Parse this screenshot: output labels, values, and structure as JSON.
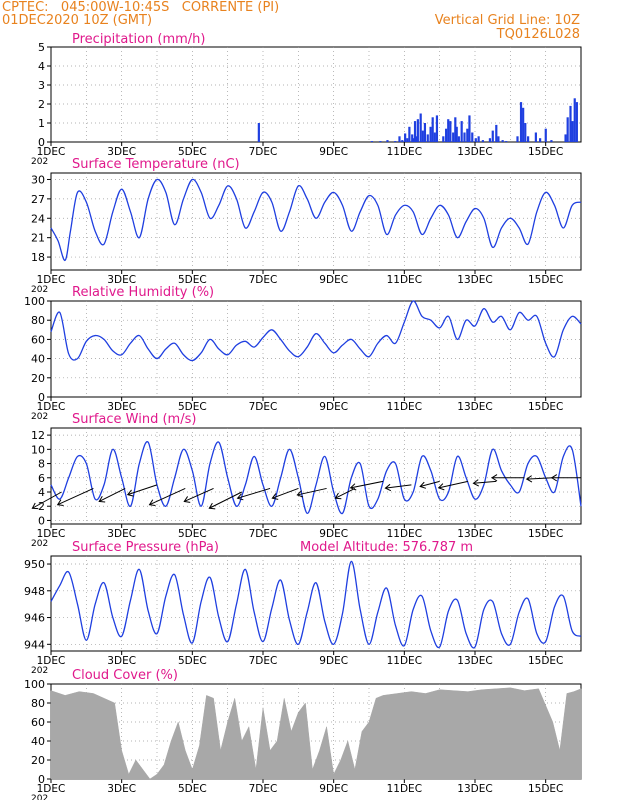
{
  "header": {
    "line1": "CPTEC:   045:00W-10:45S   CORRENTE (PI)",
    "line2": "01DEC2020 10Z (GMT)",
    "grid_note": "Vertical Grid Line: 10Z",
    "code": "TQ0126L028"
  },
  "colors": {
    "header": "#e8821e",
    "title": "#e0198c",
    "line": "#1f3fe0",
    "bar": "#1f3fe0",
    "cloud": "#a8a8a8",
    "wind_arrow": "#000000",
    "grid": "#9a9a9a"
  },
  "x_axis": {
    "tick_labels": [
      "1DEC",
      "3DEC",
      "5DEC",
      "7DEC",
      "9DEC",
      "11DEC",
      "13DEC",
      "15DEC"
    ],
    "tick_days": [
      0,
      2,
      4,
      6,
      8,
      10,
      12,
      14
    ],
    "range_days": [
      0,
      15
    ],
    "year_stub": "202"
  },
  "chart_data": [
    {
      "id": "precip",
      "type": "bar",
      "title": "Precipitation (mm/h)",
      "ylim": [
        0,
        5
      ],
      "yticks": [
        0,
        1,
        2,
        3,
        4,
        5
      ],
      "x_days": [
        5.88,
        9.08,
        9.32,
        9.52,
        9.74,
        9.86,
        9.94,
        10.02,
        10.08,
        10.14,
        10.22,
        10.26,
        10.3,
        10.34,
        10.38,
        10.46,
        10.52,
        10.58,
        10.66,
        10.74,
        10.8,
        10.86,
        10.92,
        11.1,
        11.18,
        11.24,
        11.3,
        11.38,
        11.44,
        11.48,
        11.54,
        11.62,
        11.7,
        11.78,
        11.84,
        11.92,
        12.02,
        12.1,
        12.22,
        12.42,
        12.5,
        12.6,
        12.66,
        12.78,
        12.88,
        13.2,
        13.3,
        13.36,
        13.42,
        13.5,
        13.72,
        13.84,
        14.0,
        14.16,
        14.56,
        14.62,
        14.7,
        14.76,
        14.82,
        14.88
      ],
      "values": [
        1.0,
        0.05,
        0.05,
        0.1,
        0.05,
        0.3,
        0.1,
        0.45,
        0.2,
        0.8,
        0.4,
        0.2,
        1.1,
        0.3,
        1.2,
        1.5,
        0.6,
        1.0,
        0.4,
        0.8,
        1.3,
        0.5,
        1.4,
        0.3,
        0.7,
        1.2,
        1.1,
        0.5,
        1.3,
        0.8,
        0.3,
        1.1,
        0.5,
        0.7,
        1.4,
        0.5,
        0.2,
        0.3,
        0.1,
        0.2,
        0.6,
        0.9,
        0.3,
        0.1,
        0.05,
        0.3,
        2.1,
        1.8,
        1.0,
        0.3,
        0.5,
        0.2,
        0.7,
        0.1,
        0.4,
        1.3,
        1.9,
        1.1,
        2.3,
        2.1
      ]
    },
    {
      "id": "temp",
      "type": "line",
      "title": "Surface Temperature (nC)",
      "ylim": [
        16,
        31
      ],
      "yticks": [
        18,
        21,
        24,
        27,
        30
      ],
      "x_days": [
        0,
        0.2,
        0.4,
        0.55,
        0.75,
        1.0,
        1.25,
        1.5,
        1.75,
        2.0,
        2.25,
        2.5,
        2.75,
        3.0,
        3.25,
        3.5,
        3.75,
        4.0,
        4.25,
        4.5,
        4.75,
        5.0,
        5.25,
        5.5,
        5.75,
        6.0,
        6.25,
        6.5,
        6.75,
        7.0,
        7.25,
        7.5,
        7.75,
        8.0,
        8.25,
        8.5,
        8.75,
        9.0,
        9.25,
        9.5,
        9.75,
        10.0,
        10.25,
        10.5,
        10.75,
        11.0,
        11.25,
        11.5,
        11.75,
        12.0,
        12.25,
        12.5,
        12.75,
        13.0,
        13.25,
        13.5,
        13.75,
        14.0,
        14.25,
        14.5,
        14.75,
        15.0
      ],
      "values": [
        22.5,
        20.5,
        17.5,
        22.0,
        28.0,
        26.5,
        22.0,
        20.0,
        25.0,
        28.5,
        25.0,
        21.0,
        27.0,
        30.0,
        28.0,
        23.0,
        27.0,
        30.0,
        28.0,
        24.0,
        26.0,
        29.0,
        27.0,
        22.5,
        25.0,
        28.0,
        26.5,
        22.0,
        25.0,
        29.0,
        27.0,
        24.0,
        26.5,
        28.0,
        26.0,
        22.0,
        25.0,
        27.5,
        26.0,
        21.5,
        24.5,
        26.0,
        25.0,
        21.5,
        24.0,
        26.0,
        24.5,
        21.0,
        23.5,
        25.5,
        24.0,
        19.5,
        22.5,
        24.0,
        22.5,
        20.0,
        25.0,
        28.0,
        26.0,
        22.5,
        26.0,
        26.5
      ]
    },
    {
      "id": "rh",
      "type": "line",
      "title": "Relative Humidity (%)",
      "ylim": [
        0,
        100
      ],
      "yticks": [
        0,
        20,
        40,
        60,
        80,
        100
      ],
      "x_days": [
        0,
        0.25,
        0.5,
        0.75,
        1.0,
        1.25,
        1.5,
        1.75,
        2.0,
        2.25,
        2.5,
        2.75,
        3.0,
        3.25,
        3.5,
        3.75,
        4.0,
        4.25,
        4.5,
        4.75,
        5.0,
        5.25,
        5.5,
        5.75,
        6.0,
        6.25,
        6.5,
        6.75,
        7.0,
        7.25,
        7.5,
        7.75,
        8.0,
        8.25,
        8.5,
        8.75,
        9.0,
        9.25,
        9.5,
        9.75,
        10.0,
        10.25,
        10.5,
        10.75,
        11.0,
        11.25,
        11.5,
        11.75,
        12.0,
        12.25,
        12.5,
        12.75,
        13.0,
        13.25,
        13.5,
        13.75,
        14.0,
        14.25,
        14.5,
        14.75,
        15.0
      ],
      "values": [
        68,
        88,
        45,
        40,
        58,
        64,
        60,
        48,
        44,
        56,
        64,
        50,
        40,
        50,
        56,
        44,
        38,
        46,
        60,
        50,
        44,
        54,
        58,
        52,
        62,
        70,
        60,
        48,
        42,
        52,
        66,
        56,
        46,
        54,
        60,
        50,
        42,
        56,
        64,
        56,
        78,
        100,
        84,
        80,
        72,
        84,
        60,
        80,
        74,
        92,
        78,
        84,
        70,
        88,
        80,
        84,
        56,
        42,
        70,
        84,
        76
      ]
    },
    {
      "id": "wind",
      "type": "line",
      "title": "Surface Wind (m/s)",
      "ylim": [
        -0.5,
        13
      ],
      "yticks": [
        0,
        2,
        4,
        6,
        8,
        10,
        12
      ],
      "x_days": [
        0,
        0.25,
        0.5,
        0.75,
        1.0,
        1.25,
        1.5,
        1.75,
        2.0,
        2.25,
        2.5,
        2.75,
        3.0,
        3.25,
        3.5,
        3.75,
        4.0,
        4.25,
        4.5,
        4.75,
        5.0,
        5.25,
        5.5,
        5.75,
        6.0,
        6.25,
        6.5,
        6.75,
        7.0,
        7.25,
        7.5,
        7.75,
        8.0,
        8.25,
        8.5,
        8.75,
        9.0,
        9.25,
        9.5,
        9.75,
        10.0,
        10.25,
        10.5,
        10.75,
        11.0,
        11.25,
        11.5,
        11.75,
        12.0,
        12.25,
        12.5,
        12.75,
        13.0,
        13.25,
        13.5,
        13.75,
        14.0,
        14.25,
        14.5,
        14.75,
        15.0
      ],
      "values": [
        5,
        3,
        6,
        9,
        8,
        3,
        5,
        10,
        6,
        2,
        8,
        11,
        5,
        2,
        6,
        10,
        7,
        2,
        8,
        11,
        6,
        2,
        5,
        9,
        5,
        2,
        6,
        10,
        6,
        1,
        5,
        9,
        4,
        1,
        6,
        8,
        2,
        3,
        7,
        8,
        3,
        4,
        9,
        7,
        3,
        4,
        9,
        6,
        3,
        5,
        10,
        7,
        5,
        4,
        8,
        9,
        6,
        4,
        9,
        10,
        2
      ],
      "arrow_x_days": [
        0.3,
        1.2,
        2.1,
        3.0,
        3.8,
        4.6,
        5.4,
        6.2,
        7.0,
        7.8,
        8.6,
        9.4,
        10.2,
        11.0,
        11.8,
        12.6,
        13.4,
        14.2,
        15.0
      ],
      "arrow_y": [
        4.0,
        4.5,
        4.5,
        5.0,
        4.5,
        4.5,
        4.0,
        4.5,
        4.5,
        4.5,
        4.5,
        5.5,
        5.0,
        5.5,
        5.5,
        5.5,
        6.0,
        6.0,
        6.0
      ],
      "arrow_u": [
        -4.5,
        -5.5,
        -4.0,
        -4.5,
        -5.5,
        -4.5,
        -5.0,
        -5.0,
        -4.0,
        -4.5,
        -3.0,
        -5.0,
        -4.0,
        -3.0,
        -4.5,
        -3.5,
        -5.0,
        -4.0,
        -4.5
      ],
      "arrow_v": [
        2.5,
        2.5,
        2.0,
        1.5,
        2.5,
        2.0,
        2.5,
        1.5,
        1.5,
        1.0,
        1.5,
        1.0,
        0.5,
        0.8,
        1.0,
        0.3,
        0.0,
        0.2,
        0.0
      ]
    },
    {
      "id": "pressure",
      "type": "line",
      "title": "Surface Pressure (hPa)",
      "subtitle": "Model Altitude: 576.787 m",
      "ylim": [
        943.5,
        950.6
      ],
      "yticks": [
        944,
        946,
        948,
        950
      ],
      "x_days": [
        0,
        0.25,
        0.5,
        0.75,
        1.0,
        1.25,
        1.5,
        1.75,
        2.0,
        2.25,
        2.5,
        2.75,
        3.0,
        3.25,
        3.5,
        3.75,
        4.0,
        4.25,
        4.5,
        4.75,
        5.0,
        5.25,
        5.5,
        5.75,
        6.0,
        6.25,
        6.5,
        6.75,
        7.0,
        7.25,
        7.5,
        7.75,
        8.0,
        8.25,
        8.5,
        8.75,
        9.0,
        9.25,
        9.5,
        9.75,
        10.0,
        10.25,
        10.5,
        10.75,
        11.0,
        11.25,
        11.5,
        11.75,
        12.0,
        12.25,
        12.5,
        12.75,
        13.0,
        13.25,
        13.5,
        13.75,
        14.0,
        14.25,
        14.5,
        14.75,
        15.0
      ],
      "values": [
        947.2,
        948.4,
        949.4,
        947.0,
        944.3,
        947.0,
        948.6,
        946.0,
        944.6,
        947.3,
        949.6,
        946.5,
        944.8,
        947.6,
        949.2,
        946.2,
        944.1,
        947.2,
        949.0,
        946.0,
        944.2,
        947.0,
        949.6,
        946.4,
        944.2,
        946.7,
        948.8,
        945.8,
        944.0,
        946.4,
        948.6,
        945.7,
        944.0,
        946.3,
        950.2,
        946.6,
        944.0,
        946.4,
        948.2,
        945.4,
        943.9,
        946.6,
        947.6,
        945.0,
        943.8,
        946.5,
        947.3,
        944.8,
        943.8,
        946.6,
        947.2,
        944.8,
        944.0,
        946.4,
        947.4,
        944.8,
        944.2,
        946.8,
        947.6,
        945.0,
        944.6
      ]
    },
    {
      "id": "cloud",
      "type": "area",
      "title": "Cloud Cover (%)",
      "ylim": [
        0,
        100
      ],
      "yticks": [
        0,
        20,
        40,
        60,
        80,
        100
      ],
      "x_days": [
        0,
        0.4,
        0.8,
        1.2,
        1.5,
        1.8,
        2.0,
        2.2,
        2.4,
        2.6,
        2.8,
        3.0,
        3.2,
        3.4,
        3.6,
        3.8,
        4.0,
        4.2,
        4.4,
        4.6,
        4.8,
        5.0,
        5.2,
        5.4,
        5.6,
        5.8,
        6.0,
        6.2,
        6.4,
        6.6,
        6.8,
        7.0,
        7.2,
        7.4,
        7.6,
        7.8,
        8.0,
        8.2,
        8.4,
        8.6,
        8.8,
        9.0,
        9.2,
        9.4,
        9.8,
        10.2,
        10.6,
        11.0,
        11.4,
        11.8,
        12.2,
        12.6,
        13.0,
        13.4,
        13.8,
        14.2,
        14.4,
        14.6,
        14.8,
        15.0
      ],
      "values": [
        93,
        88,
        92,
        90,
        85,
        80,
        30,
        5,
        20,
        10,
        0,
        5,
        15,
        40,
        60,
        30,
        10,
        35,
        88,
        85,
        30,
        60,
        85,
        40,
        55,
        10,
        75,
        30,
        40,
        85,
        50,
        70,
        80,
        10,
        30,
        55,
        5,
        20,
        40,
        10,
        50,
        60,
        85,
        88,
        90,
        92,
        90,
        94,
        93,
        92,
        94,
        95,
        96,
        93,
        95,
        60,
        30,
        90,
        92,
        95
      ]
    }
  ]
}
